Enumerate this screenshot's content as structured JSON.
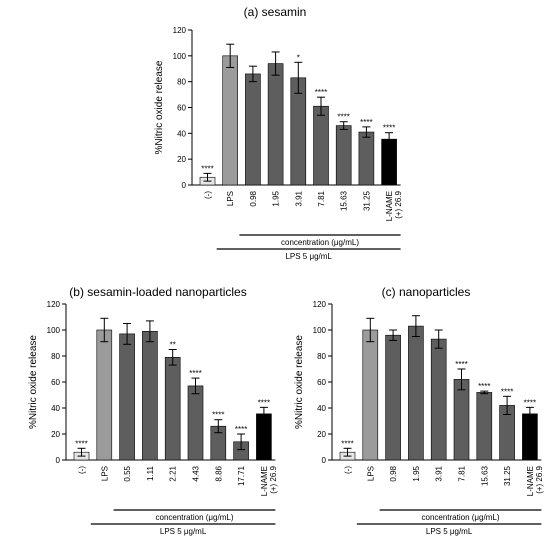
{
  "chart_data": [
    {
      "type": "bar",
      "title": "(a) sesamin",
      "ylabel": "%Nitric oxide release",
      "ylim": [
        0,
        120
      ],
      "yticks": [
        0,
        20,
        40,
        60,
        80,
        100,
        120
      ],
      "categories": [
        "(-)",
        "LPS",
        "0.98",
        "1.95",
        "3.91",
        "7.81",
        "15.63",
        "31.25",
        "L-NAME\n(+) 26.9"
      ],
      "values": [
        6,
        100,
        86,
        94,
        83,
        61,
        46,
        41,
        35.5
      ],
      "errors": [
        3,
        9,
        6,
        9,
        12,
        7,
        3,
        4,
        5
      ],
      "significance": [
        "****",
        "",
        "",
        "",
        "*",
        "****",
        "****",
        "****",
        "****"
      ],
      "bar_colors": [
        "#e6e6e6",
        "#9b9b9b",
        "#5e5e5e",
        "#5e5e5e",
        "#5e5e5e",
        "#5e5e5e",
        "#5e5e5e",
        "#5e5e5e",
        "#000000"
      ],
      "brackets": [
        "concentration (μg/mL)",
        "LPS 5 μg/mL"
      ]
    },
    {
      "type": "bar",
      "title": "(b) sesamin-loaded nanoparticles",
      "ylabel": "%Nitric oxide release",
      "ylim": [
        0,
        120
      ],
      "yticks": [
        0,
        20,
        40,
        60,
        80,
        100,
        120
      ],
      "categories": [
        "(-)",
        "LPS",
        "0.55",
        "1.11",
        "2.21",
        "4.43",
        "8.86",
        "17.71",
        "L-NAME\n(+) 26.9"
      ],
      "values": [
        6,
        100,
        97,
        99,
        79,
        57,
        26,
        14,
        35.5
      ],
      "errors": [
        3,
        9,
        8,
        8,
        6,
        6,
        5,
        6,
        5
      ],
      "significance": [
        "****",
        "",
        "",
        "",
        "**",
        "****",
        "****",
        "****",
        "****"
      ],
      "bar_colors": [
        "#e6e6e6",
        "#9b9b9b",
        "#5e5e5e",
        "#5e5e5e",
        "#5e5e5e",
        "#5e5e5e",
        "#5e5e5e",
        "#5e5e5e",
        "#000000"
      ],
      "brackets": [
        "concentration (μg/mL)",
        "LPS 5 μg/mL"
      ]
    },
    {
      "type": "bar",
      "title": "(c) nanoparticles",
      "ylabel": "%Nitric oxide release",
      "ylim": [
        0,
        120
      ],
      "yticks": [
        0,
        20,
        40,
        60,
        80,
        100,
        120
      ],
      "categories": [
        "(-)",
        "LPS",
        "0.98",
        "1.95",
        "3.91",
        "7.81",
        "15.63",
        "31.25",
        "L-NAME\n(+) 26.9"
      ],
      "values": [
        6,
        100,
        96,
        103,
        93,
        62,
        52,
        42,
        35.5
      ],
      "errors": [
        3,
        9,
        4,
        8,
        7,
        8,
        1,
        7,
        5
      ],
      "significance": [
        "****",
        "",
        "",
        "",
        "",
        "****",
        "****",
        "****",
        "****"
      ],
      "bar_colors": [
        "#e6e6e6",
        "#9b9b9b",
        "#5e5e5e",
        "#5e5e5e",
        "#5e5e5e",
        "#5e5e5e",
        "#5e5e5e",
        "#5e5e5e",
        "#000000"
      ],
      "brackets": [
        "concentration (μg/mL)",
        "LPS 5 μg/mL"
      ]
    }
  ]
}
